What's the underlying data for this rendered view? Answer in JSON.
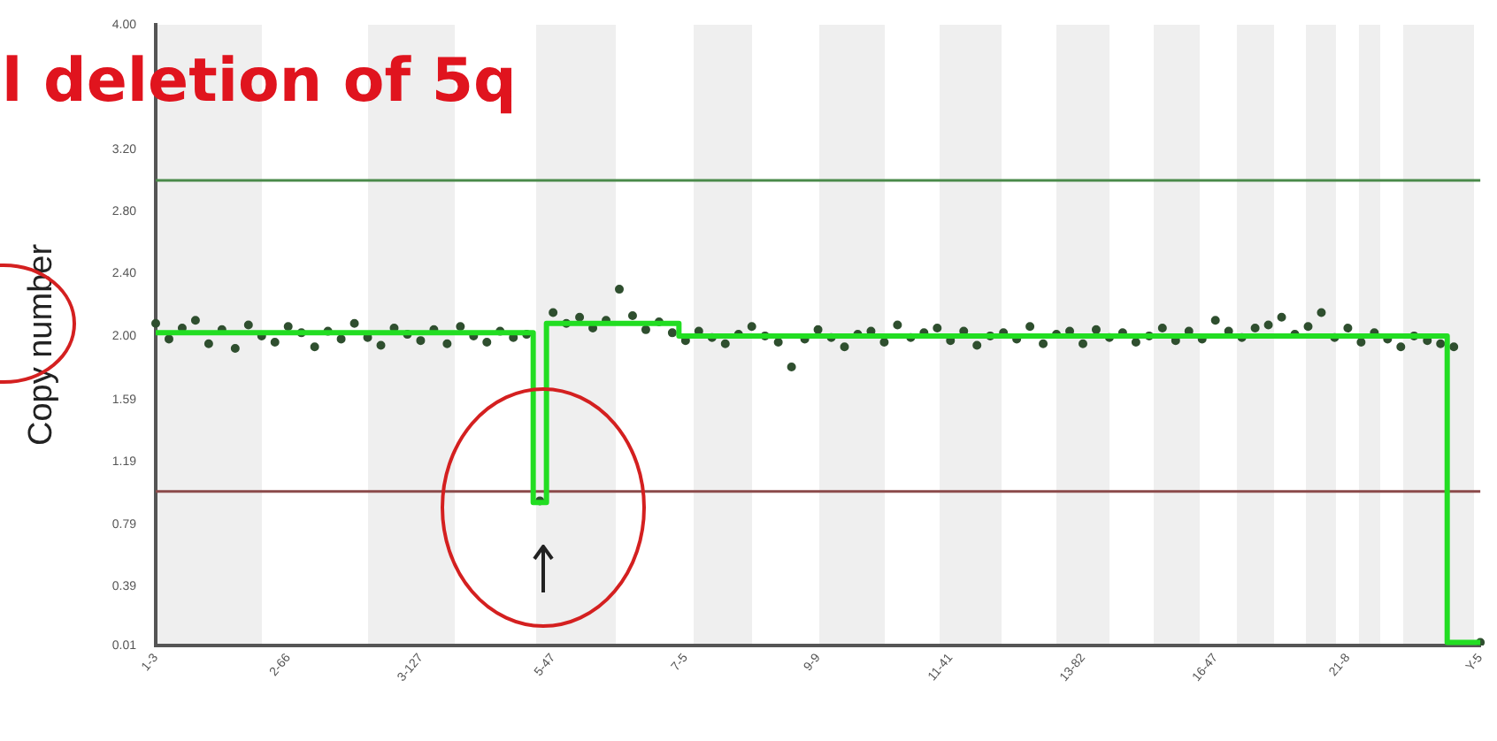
{
  "chart_data": {
    "type": "scatter",
    "title": "l deletion of 5q",
    "ylabel": "Copy number",
    "categories": [
      "1-3",
      null,
      null,
      null,
      null,
      null,
      null,
      null,
      null,
      null,
      "2-66",
      null,
      null,
      null,
      null,
      null,
      null,
      null,
      null,
      null,
      "3-127",
      null,
      null,
      null,
      null,
      null,
      null,
      null,
      null,
      null,
      "5-47",
      null,
      null,
      null,
      null,
      null,
      null,
      null,
      null,
      null,
      "7-5",
      null,
      null,
      null,
      null,
      null,
      null,
      null,
      null,
      null,
      "9-9",
      null,
      null,
      null,
      null,
      null,
      null,
      null,
      null,
      null,
      "11-41",
      null,
      null,
      null,
      null,
      null,
      null,
      null,
      null,
      null,
      "13-82",
      null,
      null,
      null,
      null,
      null,
      null,
      null,
      null,
      null,
      "16-47",
      null,
      null,
      null,
      null,
      null,
      null,
      null,
      null,
      null,
      "21-8",
      null,
      null,
      null,
      null,
      null,
      null,
      null,
      null,
      null,
      "Y-5"
    ],
    "ylim": [
      0.01,
      4.0
    ],
    "yticks": [
      {
        "value": 0.01,
        "label": "0.01"
      },
      {
        "value": 0.39,
        "label": "0.39"
      },
      {
        "value": 0.79,
        "label": "0.79"
      },
      {
        "value": 1.19,
        "label": "1.19"
      },
      {
        "value": 1.59,
        "label": "1.59"
      },
      {
        "value": 2.0,
        "label": "2.00"
      },
      {
        "value": 2.4,
        "label": "2.40"
      },
      {
        "value": 2.8,
        "label": "2.80"
      },
      {
        "value": 3.2,
        "label": "3.20"
      },
      {
        "value": 4.0,
        "label": "4.00"
      }
    ],
    "grid": false,
    "series": [
      {
        "color": "#2f4f2f",
        "marker": "circle",
        "values": [
          2.08,
          1.98,
          2.05,
          2.1,
          1.95,
          2.04,
          1.92,
          2.07,
          2.0,
          1.96,
          2.06,
          2.02,
          1.93,
          2.03,
          1.98,
          2.08,
          1.99,
          1.94,
          2.05,
          2.01,
          1.97,
          2.04,
          1.95,
          2.06,
          2.0,
          1.96,
          2.03,
          1.99,
          2.01,
          0.94,
          2.15,
          2.08,
          2.12,
          2.05,
          2.1,
          2.3,
          2.13,
          2.04,
          2.09,
          2.02,
          1.97,
          2.03,
          1.99,
          1.95,
          2.01,
          2.06,
          2.0,
          1.96,
          1.8,
          1.98,
          2.04,
          1.99,
          1.93,
          2.01,
          2.03,
          1.96,
          2.07,
          1.99,
          2.02,
          2.05,
          1.97,
          2.03,
          1.94,
          2.0,
          2.02,
          1.98,
          2.06,
          1.95,
          2.01,
          2.03,
          1.95,
          2.04,
          1.99,
          2.02,
          1.96,
          2.0,
          2.05,
          1.97,
          2.03,
          1.98,
          2.1,
          2.03,
          1.99,
          2.05,
          2.07,
          2.12,
          2.01,
          2.06,
          2.15,
          1.99,
          2.05,
          1.96,
          2.02,
          1.98,
          1.93,
          2.0,
          1.97,
          1.95,
          1.93,
          null,
          0.03
        ]
      },
      {
        "type": "step",
        "color": "#22dd22",
        "marker": "none",
        "values": [
          2.02,
          2.02,
          2.02,
          2.02,
          2.02,
          2.02,
          2.02,
          2.02,
          2.02,
          2.02,
          2.02,
          2.02,
          2.02,
          2.02,
          2.02,
          2.02,
          2.02,
          2.02,
          2.02,
          2.02,
          2.02,
          2.02,
          2.02,
          2.02,
          2.02,
          2.02,
          2.02,
          2.02,
          2.02,
          0.93,
          2.08,
          2.08,
          2.08,
          2.08,
          2.08,
          2.08,
          2.08,
          2.08,
          2.08,
          2.08,
          2.0,
          2.0,
          2.0,
          2.0,
          2.0,
          2.0,
          2.0,
          2.0,
          2.0,
          2.0,
          2.0,
          2.0,
          2.0,
          2.0,
          2.0,
          2.0,
          2.0,
          2.0,
          2.0,
          2.0,
          2.0,
          2.0,
          2.0,
          2.0,
          2.0,
          2.0,
          2.0,
          2.0,
          2.0,
          2.0,
          2.0,
          2.0,
          2.0,
          2.0,
          2.0,
          2.0,
          2.0,
          2.0,
          2.0,
          2.0,
          2.0,
          2.0,
          2.0,
          2.0,
          2.0,
          2.0,
          2.0,
          2.0,
          2.0,
          2.0,
          2.0,
          2.0,
          2.0,
          2.0,
          2.0,
          2.0,
          2.0,
          2.0,
          0.03,
          0.03,
          0.03
        ]
      }
    ],
    "ref_lines": [
      {
        "axis": "y",
        "value": 3.0,
        "color": "#4a8a4a"
      },
      {
        "axis": "y",
        "value": 1.0,
        "color": "#8b4a4a"
      }
    ]
  }
}
